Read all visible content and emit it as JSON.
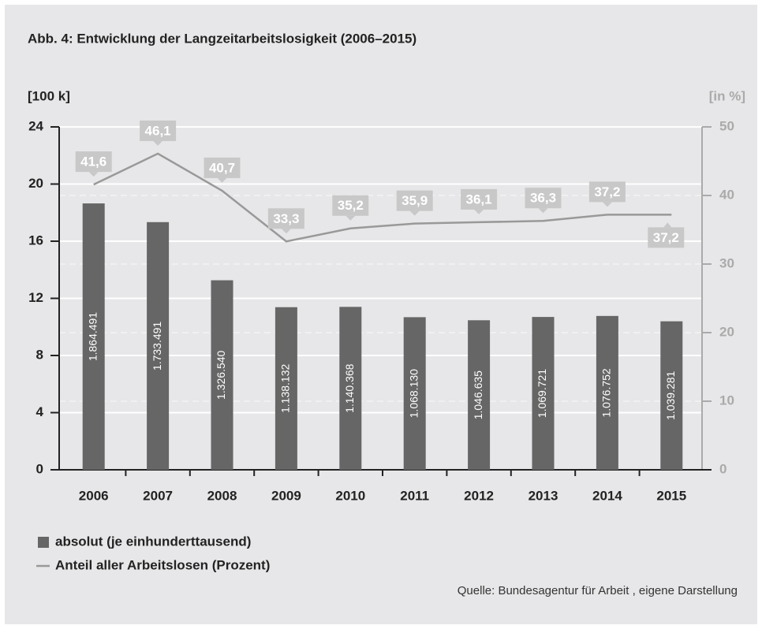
{
  "chart_data": {
    "type": "bar",
    "title": "Abb. 4: Entwicklung der Langzeitarbeitslosigkeit (2006–2015)",
    "ylabel": "[100 k]",
    "y2label": "[in %]",
    "categories": [
      "2006",
      "2007",
      "2008",
      "2009",
      "2010",
      "2011",
      "2012",
      "2013",
      "2014",
      "2015"
    ],
    "series": [
      {
        "name": "absolut (je einhunderttausend)",
        "color": "#666666",
        "type": "bar",
        "values": [
          18.64491,
          17.33491,
          13.2654,
          11.38132,
          11.40368,
          10.6813,
          10.46635,
          10.69721,
          10.76752,
          10.39281
        ],
        "value_labels": [
          "1.864.491",
          "1.733.491",
          "1.326.540",
          "1.138.132",
          "1.140.368",
          "1.068.130",
          "1.046.635",
          "1.069.721",
          "1.076.752",
          "1.039.281"
        ]
      },
      {
        "name": "Anteil aller Arbeitslosen (Prozent)",
        "color": "#999999",
        "type": "line",
        "axis": "y2",
        "values": [
          41.6,
          46.1,
          40.7,
          33.3,
          35.2,
          35.9,
          36.1,
          36.3,
          37.2,
          37.2
        ],
        "value_labels": [
          "41,6",
          "46,1",
          "40,7",
          "33,3",
          "35,2",
          "35,9",
          "36,1",
          "36,3",
          "37,2",
          "37,2"
        ]
      }
    ],
    "ylim": [
      0,
      24
    ],
    "yticks": [
      0,
      4,
      8,
      12,
      16,
      20,
      24
    ],
    "y2lim": [
      0,
      50
    ],
    "y2ticks": [
      0,
      10,
      20,
      30,
      40,
      50
    ],
    "grid": true,
    "source": "Quelle:  Bundesagentur für Arbeit , eigene Darstellung"
  }
}
